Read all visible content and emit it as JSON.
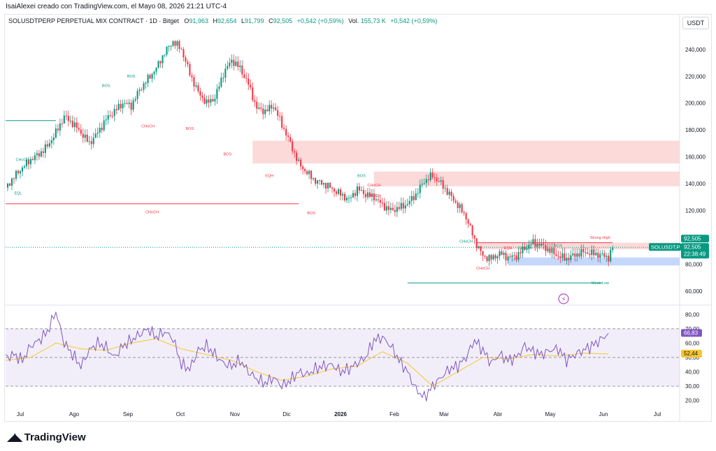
{
  "header": {
    "credit": "IsaiAlexei creado con TradingView.com, el Mayo 08, 2026 21:21 UTC-4"
  },
  "legend": {
    "symbol": "SOLUSDTPERP PERPETUAL MIX CONTRACT · 1D · Bitget",
    "o_label": "O",
    "o": "91,963",
    "h_label": "H",
    "h": "92,654",
    "l_label": "L",
    "l": "91,799",
    "c_label": "C",
    "c": "92,505",
    "change": "+0,542 (+0,59%)",
    "vol_label": "Vol.",
    "vol": "155,73 K",
    "vol_change": "+0,542 (+0,59%)"
  },
  "currency_button": "USDT",
  "price_badges": {
    "last": "92,505",
    "symbol": "SOLUSDT.P",
    "price": "92,505",
    "countdown": "22:38:49"
  },
  "rsi_badges": {
    "rsi": "66,83",
    "ma": "52,44"
  },
  "footer": {
    "brand": "TradingView"
  },
  "colors": {
    "up": "#089981",
    "down": "#f23645",
    "rsi": "#7e57c2",
    "rsi_ma": "#f7c631",
    "zone_red": "#fbd4d4",
    "zone_blue": "#bbd1fb"
  },
  "chart_data": [
    {
      "type": "candlestick",
      "title": "SOLUSDTPERP PERPETUAL MIX CONTRACT · 1D · Bitget",
      "y_ticks": [
        60,
        80,
        100,
        120,
        140,
        160,
        180,
        200,
        220,
        240
      ],
      "y_tick_labels": [
        "60,000",
        "80,000",
        "100,000",
        "120,000",
        "140,000",
        "160,000",
        "180,000",
        "200,000",
        "220,000",
        "240,000"
      ],
      "ylim": [
        50,
        255
      ],
      "x_tick_labels": [
        "Jul",
        "Ago",
        "Sep",
        "Oct",
        "Nov",
        "Dic",
        "2026",
        "Feb",
        "Mar",
        "Abr",
        "May",
        "Jun",
        "Jul"
      ],
      "close_path": [
        [
          0,
          137
        ],
        [
          4,
          145
        ],
        [
          8,
          152
        ],
        [
          12,
          158
        ],
        [
          16,
          162
        ],
        [
          20,
          168
        ],
        [
          24,
          178
        ],
        [
          28,
          190
        ],
        [
          32,
          185
        ],
        [
          36,
          178
        ],
        [
          40,
          170
        ],
        [
          44,
          178
        ],
        [
          48,
          188
        ],
        [
          52,
          194
        ],
        [
          56,
          200
        ],
        [
          60,
          198
        ],
        [
          64,
          210
        ],
        [
          68,
          218
        ],
        [
          72,
          226
        ],
        [
          76,
          238
        ],
        [
          80,
          246
        ],
        [
          84,
          240
        ],
        [
          88,
          222
        ],
        [
          92,
          208
        ],
        [
          96,
          200
        ],
        [
          100,
          204
        ],
        [
          104,
          222
        ],
        [
          108,
          232
        ],
        [
          112,
          226
        ],
        [
          116,
          214
        ],
        [
          120,
          196
        ],
        [
          124,
          194
        ],
        [
          128,
          198
        ],
        [
          132,
          184
        ],
        [
          136,
          170
        ],
        [
          140,
          155
        ],
        [
          144,
          148
        ],
        [
          148,
          142
        ],
        [
          152,
          140
        ],
        [
          156,
          136
        ],
        [
          160,
          132
        ],
        [
          164,
          128
        ],
        [
          168,
          136
        ],
        [
          172,
          132
        ],
        [
          176,
          130
        ],
        [
          180,
          124
        ],
        [
          184,
          120
        ],
        [
          188,
          122
        ],
        [
          192,
          125
        ],
        [
          196,
          132
        ],
        [
          200,
          142
        ],
        [
          204,
          146
        ],
        [
          208,
          140
        ],
        [
          212,
          132
        ],
        [
          216,
          124
        ],
        [
          220,
          115
        ],
        [
          224,
          98
        ],
        [
          228,
          86
        ],
        [
          232,
          84
        ],
        [
          236,
          88
        ],
        [
          240,
          85
        ],
        [
          244,
          86
        ],
        [
          248,
          92
        ],
        [
          252,
          96
        ],
        [
          256,
          94
        ],
        [
          260,
          90
        ],
        [
          264,
          86
        ],
        [
          268,
          84
        ],
        [
          272,
          87
        ],
        [
          276,
          89
        ],
        [
          280,
          88
        ],
        [
          284,
          87
        ],
        [
          288,
          85
        ],
        [
          290,
          92
        ]
      ],
      "annotations": [
        {
          "text": "EQL",
          "x": 6,
          "y": 132,
          "color": "up"
        },
        {
          "text": "CHoCH",
          "x": 8,
          "y": 157,
          "color": "up"
        },
        {
          "text": "BOS",
          "x": 48,
          "y": 212,
          "color": "up"
        },
        {
          "text": "BOS",
          "x": 60,
          "y": 219,
          "color": "up"
        },
        {
          "text": "CHoCH",
          "x": 68,
          "y": 182,
          "color": "down"
        },
        {
          "text": "BOS",
          "x": 88,
          "y": 180,
          "color": "down"
        },
        {
          "text": "BOS",
          "x": 106,
          "y": 161,
          "color": "down"
        },
        {
          "text": "CHoCH",
          "x": 70,
          "y": 118,
          "color": "down"
        },
        {
          "text": "EQH",
          "x": 126,
          "y": 145,
          "color": "down"
        },
        {
          "text": "BOS",
          "x": 146,
          "y": 117,
          "color": "down"
        },
        {
          "text": "BOS",
          "x": 170,
          "y": 145,
          "color": "up"
        },
        {
          "text": "CHoCH",
          "x": 176,
          "y": 138,
          "color": "down"
        },
        {
          "text": "CHoCH",
          "x": 176,
          "y": 130,
          "color": "down"
        },
        {
          "text": "CHoCH",
          "x": 220,
          "y": 96,
          "color": "up"
        },
        {
          "text": "EQH",
          "x": 240,
          "y": 91,
          "color": "down"
        },
        {
          "text": "CHoCH",
          "x": 248,
          "y": 91,
          "color": "up"
        },
        {
          "text": "BOS",
          "x": 264,
          "y": 93,
          "color": "up"
        },
        {
          "text": "CHoCH",
          "x": 228,
          "y": 76,
          "color": "down"
        },
        {
          "text": "Strong High",
          "x": 284,
          "y": 99,
          "color": "down"
        },
        {
          "text": "Weak Low",
          "x": 284,
          "y": 65,
          "color": "up"
        }
      ],
      "zones": [
        {
          "color": "zone_red",
          "from": 155,
          "to": 172,
          "x_start": 118
        },
        {
          "color": "zone_red",
          "from": 138,
          "to": 149,
          "x_start": 176
        },
        {
          "color": "zone_red",
          "from": 91,
          "to": 96,
          "x_start": 225
        },
        {
          "color": "zone_blue",
          "from": 79,
          "to": 85,
          "x_start": 240
        }
      ],
      "levels": [
        {
          "value": 187,
          "x_from": 0,
          "x_to": 24,
          "color": "up"
        },
        {
          "value": 125,
          "x_from": 0,
          "x_to": 140,
          "color": "down"
        },
        {
          "value": 96,
          "x_from": 225,
          "x_to": 290,
          "color": "down"
        },
        {
          "value": 66,
          "x_from": 192,
          "x_to": 285,
          "color": "up"
        },
        {
          "value": 92.505,
          "x_from": 0,
          "x_to": 322,
          "color": "up",
          "dotted": true
        }
      ]
    },
    {
      "type": "line",
      "title": "RSI",
      "y_ticks": [
        20,
        30,
        40,
        50,
        60,
        70,
        80
      ],
      "y_tick_labels": [
        "20,00",
        "30,00",
        "40,00",
        "50,00",
        "60,00",
        "70,00",
        "80,00"
      ],
      "ylim": [
        15,
        85
      ],
      "band": [
        30,
        70
      ],
      "midline": 50,
      "series": [
        {
          "name": "RSI",
          "values": [
            [
              0,
              50
            ],
            [
              4,
              52
            ],
            [
              8,
              48
            ],
            [
              12,
              58
            ],
            [
              16,
              62
            ],
            [
              20,
              68
            ],
            [
              24,
              82
            ],
            [
              28,
              60
            ],
            [
              32,
              52
            ],
            [
              36,
              44
            ],
            [
              40,
              55
            ],
            [
              44,
              60
            ],
            [
              48,
              57
            ],
            [
              52,
              50
            ],
            [
              56,
              58
            ],
            [
              60,
              62
            ],
            [
              64,
              66
            ],
            [
              68,
              70
            ],
            [
              72,
              64
            ],
            [
              76,
              68
            ],
            [
              80,
              63
            ],
            [
              84,
              45
            ],
            [
              88,
              42
            ],
            [
              92,
              55
            ],
            [
              96,
              58
            ],
            [
              100,
              52
            ],
            [
              104,
              46
            ],
            [
              108,
              44
            ],
            [
              112,
              48
            ],
            [
              116,
              40
            ],
            [
              120,
              35
            ],
            [
              124,
              32
            ],
            [
              128,
              36
            ],
            [
              132,
              30
            ],
            [
              136,
              34
            ],
            [
              140,
              40
            ],
            [
              144,
              38
            ],
            [
              148,
              42
            ],
            [
              152,
              44
            ],
            [
              156,
              45
            ],
            [
              160,
              40
            ],
            [
              164,
              42
            ],
            [
              168,
              46
            ],
            [
              172,
              50
            ],
            [
              176,
              62
            ],
            [
              180,
              64
            ],
            [
              184,
              58
            ],
            [
              188,
              48
            ],
            [
              192,
              40
            ],
            [
              196,
              28
            ],
            [
              200,
              22
            ],
            [
              204,
              30
            ],
            [
              208,
              36
            ],
            [
              212,
              42
            ],
            [
              216,
              44
            ],
            [
              220,
              50
            ],
            [
              224,
              62
            ],
            [
              228,
              55
            ],
            [
              232,
              46
            ],
            [
              236,
              52
            ],
            [
              240,
              48
            ],
            [
              244,
              50
            ],
            [
              248,
              58
            ],
            [
              252,
              54
            ],
            [
              256,
              52
            ],
            [
              260,
              55
            ],
            [
              264,
              56
            ],
            [
              268,
              48
            ],
            [
              272,
              52
            ],
            [
              276,
              55
            ],
            [
              280,
              58
            ],
            [
              284,
              62
            ],
            [
              288,
              66.83
            ]
          ]
        },
        {
          "name": "RSI MA",
          "values": [
            [
              0,
              48
            ],
            [
              12,
              50
            ],
            [
              24,
              60
            ],
            [
              36,
              56
            ],
            [
              48,
              55
            ],
            [
              60,
              60
            ],
            [
              72,
              63
            ],
            [
              84,
              56
            ],
            [
              96,
              52
            ],
            [
              108,
              48
            ],
            [
              120,
              40
            ],
            [
              132,
              34
            ],
            [
              144,
              37
            ],
            [
              156,
              42
            ],
            [
              168,
              44
            ],
            [
              180,
              54
            ],
            [
              192,
              46
            ],
            [
              204,
              30
            ],
            [
              216,
              40
            ],
            [
              228,
              50
            ],
            [
              240,
              49
            ],
            [
              252,
              52
            ],
            [
              264,
              51
            ],
            [
              276,
              53
            ],
            [
              288,
              52.44
            ]
          ]
        }
      ]
    }
  ]
}
